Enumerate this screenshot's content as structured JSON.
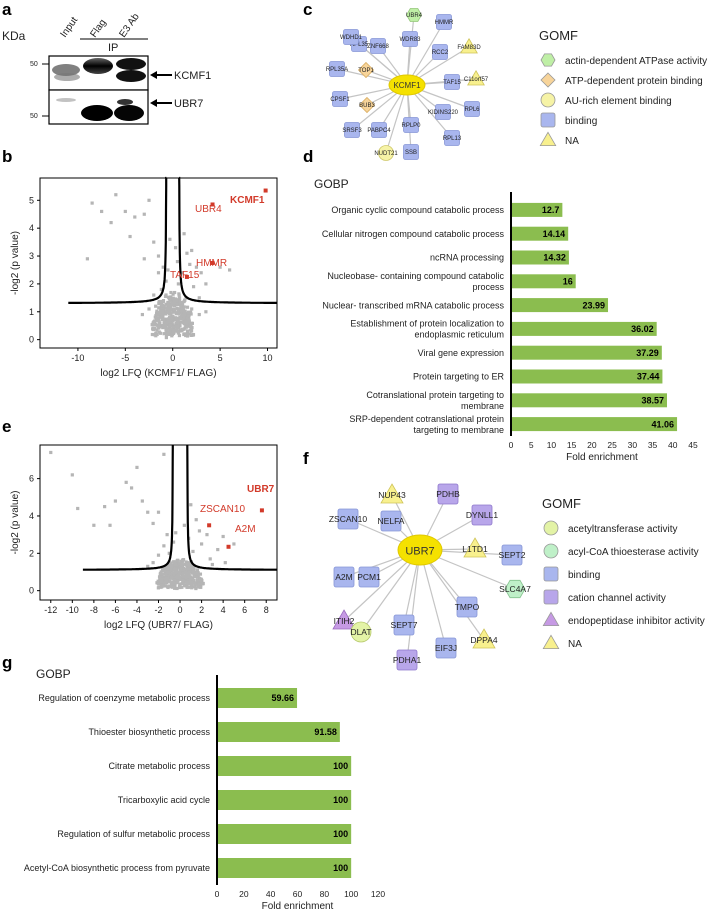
{
  "panels": {
    "a": "a",
    "b": "b",
    "c": "c",
    "d": "d",
    "e": "e",
    "f": "f",
    "g": "g"
  },
  "panel_a": {
    "kda_label": "KDa",
    "lane_labels": [
      "Input",
      "Flag",
      "E3 Ab"
    ],
    "ip_label": "IP",
    "mw_top": [
      "50",
      "50"
    ],
    "mw_bottom": [
      "50",
      "50"
    ],
    "band_labels": [
      "KCMF1",
      "UBR7"
    ]
  },
  "network_c": {
    "center": "KCMF1",
    "nodes": [
      {
        "label": "RPL35",
        "shape": "square",
        "cat": "binding"
      },
      {
        "label": "UBR4",
        "shape": "hexagon",
        "cat": "actin"
      },
      {
        "label": "HMMR",
        "shape": "square",
        "cat": "binding"
      },
      {
        "label": "WDHD1",
        "shape": "square",
        "cat": "binding"
      },
      {
        "label": "ZNF668",
        "shape": "square",
        "cat": "binding"
      },
      {
        "label": "WDR83",
        "shape": "square",
        "cat": "binding"
      },
      {
        "label": "RCC2",
        "shape": "square",
        "cat": "binding"
      },
      {
        "label": "FAM83D",
        "shape": "triangle",
        "cat": "na"
      },
      {
        "label": "RPL35A",
        "shape": "square",
        "cat": "binding"
      },
      {
        "label": "TOP1",
        "shape": "diamond",
        "cat": "atp"
      },
      {
        "label": "TAF15",
        "shape": "square",
        "cat": "binding"
      },
      {
        "label": "C11orf57",
        "shape": "triangle",
        "cat": "na"
      },
      {
        "label": "CPSF1",
        "shape": "square",
        "cat": "binding"
      },
      {
        "label": "BUB3",
        "shape": "diamond",
        "cat": "atp"
      },
      {
        "label": "RPL6",
        "shape": "square",
        "cat": "binding"
      },
      {
        "label": "KIDINS220",
        "shape": "square",
        "cat": "binding"
      },
      {
        "label": "SRSF3",
        "shape": "square",
        "cat": "binding"
      },
      {
        "label": "PABPC4",
        "shape": "square",
        "cat": "binding"
      },
      {
        "label": "RPLP0",
        "shape": "square",
        "cat": "binding"
      },
      {
        "label": "RPL13",
        "shape": "square",
        "cat": "binding"
      },
      {
        "label": "SSB",
        "shape": "square",
        "cat": "binding"
      },
      {
        "label": "NUDT21",
        "shape": "circle",
        "cat": "au"
      }
    ],
    "legend_title": "GOMF",
    "legend": [
      {
        "label": "actin-dependent ATPase activity",
        "shape": "hexagon",
        "color": "#bfefa6"
      },
      {
        "label": "ATP-dependent protein binding",
        "shape": "diamond",
        "color": "#f7d49a"
      },
      {
        "label": "AU-rich element binding",
        "shape": "circle",
        "color": "#f6f3a6"
      },
      {
        "label": "binding",
        "shape": "square",
        "color": "#a9b6ee"
      },
      {
        "label": "NA",
        "shape": "triangle",
        "color": "#f8f08e"
      }
    ]
  },
  "network_f": {
    "center": "UBR7",
    "nodes": [
      {
        "label": "NUP43",
        "shape": "triangle",
        "cat": "na"
      },
      {
        "label": "PDHB",
        "shape": "square",
        "cat": "cation"
      },
      {
        "label": "DYNLL1",
        "shape": "square",
        "cat": "cation"
      },
      {
        "label": "ZSCAN10",
        "shape": "square",
        "cat": "binding"
      },
      {
        "label": "NELFA",
        "shape": "square",
        "cat": "binding"
      },
      {
        "label": "L1TD1",
        "shape": "triangle",
        "cat": "na"
      },
      {
        "label": "SEPT2",
        "shape": "square",
        "cat": "binding"
      },
      {
        "label": "A2M",
        "shape": "square",
        "cat": "binding"
      },
      {
        "label": "PCM1",
        "shape": "square",
        "cat": "binding"
      },
      {
        "label": "SLC4A7",
        "shape": "hexagon",
        "cat": "acylcoa"
      },
      {
        "label": "ITIH2",
        "shape": "triangle",
        "cat": "endo"
      },
      {
        "label": "TMPO",
        "shape": "square",
        "cat": "binding"
      },
      {
        "label": "DLAT",
        "shape": "circle",
        "cat": "acetyl"
      },
      {
        "label": "SEPT7",
        "shape": "square",
        "cat": "binding"
      },
      {
        "label": "DPPA4",
        "shape": "triangle",
        "cat": "na"
      },
      {
        "label": "EIF3J",
        "shape": "square",
        "cat": "binding"
      },
      {
        "label": "PDHA1",
        "shape": "square",
        "cat": "cation"
      }
    ],
    "legend_title": "GOMF",
    "legend": [
      {
        "label": "acetyltransferase activity",
        "shape": "circle",
        "color": "#e3f3a6"
      },
      {
        "label": "acyl-CoA thioesterase activity",
        "shape": "circle",
        "color": "#bff0c8"
      },
      {
        "label": "binding",
        "shape": "square",
        "color": "#a9b6ee"
      },
      {
        "label": "cation channel activity",
        "shape": "square",
        "color": "#b8a6ea"
      },
      {
        "label": "endopeptidase inhibitor activity",
        "shape": "triangle",
        "color": "#c69ae4"
      },
      {
        "label": "NA",
        "shape": "triangle",
        "color": "#f8f08e"
      }
    ]
  },
  "chart_data": [
    {
      "id": "b",
      "type": "scatter",
      "xlabel": "log2 LFQ (KCMF1/ FLAG)",
      "ylabel": "-log2 (p value)",
      "xlim": [
        -14,
        11
      ],
      "ylim": [
        -0.3,
        5.8
      ],
      "xticks": [
        -10,
        -5,
        0,
        5,
        10
      ],
      "yticks": [
        0,
        1,
        2,
        3,
        4,
        5
      ],
      "highlighted": [
        {
          "label": "KCMF1",
          "x": 9.8,
          "y": 5.35,
          "bold": true
        },
        {
          "label": "UBR4",
          "x": 4.2,
          "y": 4.85,
          "bold": false
        },
        {
          "label": "HMMR",
          "x": 4.2,
          "y": 2.75,
          "bold": false
        },
        {
          "label": "TAF15",
          "x": 1.5,
          "y": 2.25,
          "bold": false
        }
      ],
      "scatter_points": [
        [
          -8.5,
          4.9
        ],
        [
          -7.5,
          4.6
        ],
        [
          -6,
          5.2
        ],
        [
          -5,
          4.6
        ],
        [
          -4,
          4.4
        ],
        [
          -3,
          4.5
        ],
        [
          -2.5,
          5
        ],
        [
          -6.5,
          4.2
        ],
        [
          -4.5,
          3.7
        ],
        [
          -2,
          3.5
        ],
        [
          -3,
          2.9
        ],
        [
          -9,
          2.9
        ],
        [
          -1.5,
          3
        ],
        [
          1.2,
          3.8
        ],
        [
          1.5,
          3.1
        ],
        [
          2,
          3.2
        ],
        [
          2.5,
          2.6
        ],
        [
          3,
          2.4
        ],
        [
          2.2,
          1.9
        ],
        [
          3.5,
          2
        ],
        [
          6,
          2.5
        ],
        [
          5,
          2.6
        ],
        [
          2.8,
          1.5
        ],
        [
          1.4,
          1.5
        ],
        [
          -1.2,
          1.8
        ],
        [
          -1.5,
          2.4
        ],
        [
          -2,
          1.6
        ],
        [
          0.3,
          3.3
        ],
        [
          -0.3,
          3.6
        ],
        [
          0.5,
          2.8
        ],
        [
          -0.5,
          2.5
        ],
        [
          1,
          2.4
        ],
        [
          -1,
          2.6
        ],
        [
          0.6,
          2
        ],
        [
          -0.7,
          2.1
        ],
        [
          1.8,
          2.7
        ],
        [
          -1.8,
          1.2
        ],
        [
          2,
          1.1
        ],
        [
          -2.5,
          1.1
        ],
        [
          3.5,
          1
        ],
        [
          2.8,
          0.9
        ],
        [
          -3.2,
          0.9
        ]
      ]
    },
    {
      "id": "d",
      "type": "bar",
      "title": "GOBP",
      "xlabel": "Fold enrichment",
      "xlim": [
        0,
        45
      ],
      "xticks": [
        0,
        5,
        10,
        15,
        20,
        25,
        30,
        35,
        40,
        45
      ],
      "categories": [
        "Organic cyclic compound catabolic process",
        "Cellular nitrogen compound catabolic process",
        "ncRNA processing",
        "Nucleobase- containing compound catabolic process",
        "Nuclear- transcribed mRNA catabolic process",
        "Establishment of protein localization to endoplasmic reticulum",
        "Viral gene expression",
        "Protein targeting to ER",
        "Cotranslational protein targeting to membrane",
        "SRP-dependent cotranslational protein targeting to membrane"
      ],
      "values": [
        12.7,
        14.14,
        14.32,
        16,
        23.99,
        36.02,
        37.29,
        37.44,
        38.57,
        41.06
      ],
      "value_labels": [
        "12.7",
        "14.14",
        "14.32",
        "16",
        "23.99",
        "36.02",
        "37.29",
        "37.44",
        "38.57",
        "41.06"
      ]
    },
    {
      "id": "e",
      "type": "scatter",
      "xlabel": "log2 LFQ (UBR7/ FLAG)",
      "ylabel": "-log2 (p value)",
      "xlim": [
        -13,
        9
      ],
      "ylim": [
        -0.5,
        7.8
      ],
      "xticks": [
        -12,
        -10,
        -8,
        -6,
        -4,
        -2,
        0,
        2,
        4,
        6,
        8
      ],
      "yticks": [
        0,
        2,
        4,
        6
      ],
      "highlighted": [
        {
          "label": "UBR7",
          "x": 7.6,
          "y": 4.3,
          "bold": true
        },
        {
          "label": "ZSCAN10",
          "x": 2.7,
          "y": 3.5,
          "bold": false
        },
        {
          "label": "A2M",
          "x": 4.5,
          "y": 2.35,
          "bold": false
        }
      ],
      "scatter_points": [
        [
          -12,
          7.4
        ],
        [
          -10,
          6.2
        ],
        [
          -9.5,
          4.4
        ],
        [
          -8,
          3.5
        ],
        [
          -6,
          4.8
        ],
        [
          -5,
          5.8
        ],
        [
          -4,
          6.6
        ],
        [
          -4.5,
          5.5
        ],
        [
          -3.5,
          4.8
        ],
        [
          -3,
          4.2
        ],
        [
          -1.5,
          7.3
        ],
        [
          -6.5,
          3.5
        ],
        [
          -7,
          4.5
        ],
        [
          -2,
          4.2
        ],
        [
          -2.5,
          3.6
        ],
        [
          1,
          4.6
        ],
        [
          1.5,
          3.8
        ],
        [
          2.5,
          3
        ],
        [
          2,
          2.5
        ],
        [
          3.5,
          2.2
        ],
        [
          4,
          2.9
        ],
        [
          5,
          2.5
        ],
        [
          1.8,
          3.2
        ],
        [
          -1.2,
          3
        ],
        [
          -1.5,
          2.4
        ],
        [
          -1,
          2
        ],
        [
          -2,
          1.9
        ],
        [
          0.4,
          3.5
        ],
        [
          -0.4,
          3.1
        ],
        [
          0.8,
          2.8
        ],
        [
          1.2,
          2.1
        ],
        [
          -0.6,
          2.6
        ],
        [
          2.8,
          1.7
        ],
        [
          -2.5,
          1.5
        ],
        [
          3,
          1.4
        ],
        [
          -3,
          1.3
        ],
        [
          4.2,
          1.5
        ]
      ]
    },
    {
      "id": "g",
      "type": "bar",
      "title": "GOBP",
      "xlabel": "Fold enrichment",
      "xlim": [
        0,
        120
      ],
      "xticks": [
        0,
        20,
        40,
        60,
        80,
        100,
        120
      ],
      "categories": [
        "Regulation of coenzyme metabolic process",
        "Thioester biosynthetic process",
        "Citrate metabolic process",
        "Tricarboxylic acid cycle",
        "Regulation of sulfur metabolic process",
        "Acetyl-CoA biosynthetic process from pyruvate"
      ],
      "values": [
        59.66,
        91.58,
        100,
        100,
        100,
        100
      ],
      "value_labels": [
        "59.66",
        "91.58",
        "100",
        "100",
        "100",
        "100"
      ]
    }
  ]
}
